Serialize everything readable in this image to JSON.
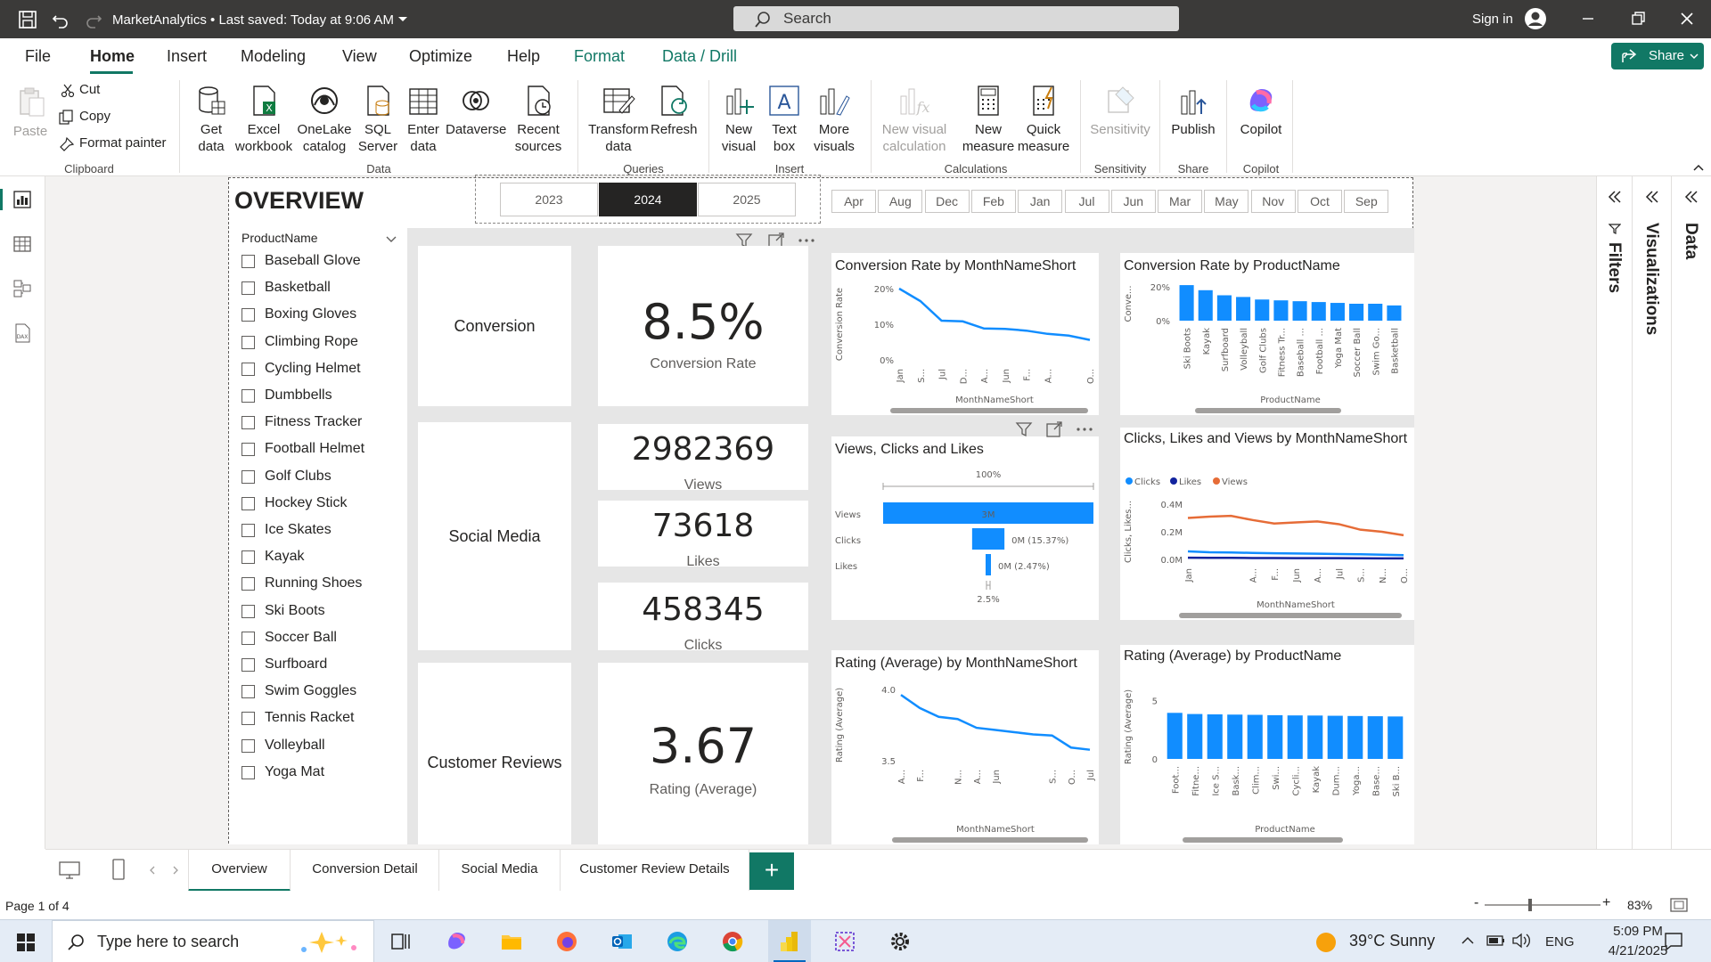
{
  "titlebar": {
    "app_title": "MarketAnalytics • Last saved: Today at 9:06 AM",
    "search_placeholder": "Search",
    "signin": "Sign in"
  },
  "menu": {
    "tabs": [
      "File",
      "Home",
      "Insert",
      "Modeling",
      "View",
      "Optimize",
      "Help",
      "Format",
      "Data / Drill"
    ],
    "active": "Home",
    "share": "Share"
  },
  "ribbon": {
    "clipboard": {
      "paste": "Paste",
      "cut": "Cut",
      "copy": "Copy",
      "format_painter": "Format painter",
      "label": "Clipboard"
    },
    "data": {
      "items": [
        "Get data",
        "Excel workbook",
        "OneLake catalog",
        "SQL Server",
        "Enter data",
        "Dataverse",
        "Recent sources"
      ],
      "label": "Data"
    },
    "queries": {
      "items": [
        "Transform data",
        "Refresh"
      ],
      "label": "Queries"
    },
    "insert": {
      "items": [
        "New visual",
        "Text box",
        "More visuals"
      ],
      "label": "Insert"
    },
    "calculations": {
      "items": [
        "New visual calculation",
        "New measure",
        "Quick measure"
      ],
      "label": "Calculations"
    },
    "sensitivity": {
      "items": [
        "Sensitivity"
      ],
      "label": "Sensitivity"
    },
    "share": {
      "items": [
        "Publish"
      ],
      "label": "Share"
    },
    "copilot": {
      "items": [
        "Copilot"
      ],
      "label": "Copilot"
    }
  },
  "panes": {
    "filters": "Filters",
    "visualizations": "Visualizations",
    "data": "Data"
  },
  "report": {
    "title": "OVERVIEW",
    "slicer": {
      "header": "ProductName",
      "items": [
        "Baseball Glove",
        "Basketball",
        "Boxing Gloves",
        "Climbing Rope",
        "Cycling Helmet",
        "Dumbbells",
        "Fitness Tracker",
        "Football Helmet",
        "Golf Clubs",
        "Hockey Stick",
        "Ice Skates",
        "Kayak",
        "Running Shoes",
        "Ski Boots",
        "Soccer Ball",
        "Surfboard",
        "Swim Goggles",
        "Tennis Racket",
        "Volleyball",
        "Yoga Mat"
      ]
    },
    "years": [
      "2023",
      "2024",
      "2025"
    ],
    "selected_year": "2024",
    "months": [
      "Apr",
      "Aug",
      "Dec",
      "Feb",
      "Jan",
      "Jul",
      "Jun",
      "Mar",
      "May",
      "Nov",
      "Oct",
      "Sep"
    ],
    "sections": {
      "conversion": "Conversion",
      "social": "Social Media",
      "reviews": "Customer Reviews"
    },
    "kpis": {
      "conversion_value": "8.5%",
      "conversion_label": "Conversion Rate",
      "views_value": "2982369",
      "views_label": "Views",
      "likes_value": "73618",
      "likes_label": "Likes",
      "clicks_value": "458345",
      "clicks_label": "Clicks",
      "rating_value": "3.67",
      "rating_label": "Rating (Average)"
    }
  },
  "chart_data": [
    {
      "type": "line",
      "title": "Conversion Rate by MonthNameShort",
      "xlabel": "MonthNameShort",
      "ylabel": "Conversion Rate",
      "categories": [
        "Jan",
        "S...",
        "Jul",
        "D...",
        "A...",
        "Jun",
        "F...",
        "A...",
        "",
        "O..."
      ],
      "yticks": [
        "20%",
        "10%",
        "0%"
      ],
      "ylim": [
        0,
        0.2
      ],
      "values": [
        0.2,
        0.165,
        0.11,
        0.108,
        0.088,
        0.087,
        0.082,
        0.073,
        0.068,
        0.056
      ]
    },
    {
      "type": "bar",
      "title": "Conversion Rate by ProductName",
      "xlabel": "ProductName",
      "ylabel": "Conve...",
      "categories": [
        "Ski Boots",
        "Kayak",
        "Surfboard",
        "Volleyball",
        "Golf Clubs",
        "Fitness Tr...",
        "Baseball ...",
        "Football ...",
        "Yoga Mat",
        "Soccer Ball",
        "Swim Go...",
        "Basketball"
      ],
      "yticks": [
        "20%",
        "0%"
      ],
      "ylim": [
        0,
        0.2
      ],
      "values": [
        0.21,
        0.18,
        0.15,
        0.14,
        0.125,
        0.12,
        0.115,
        0.11,
        0.105,
        0.1,
        0.1,
        0.09
      ]
    },
    {
      "type": "funnel",
      "title": "Views, Clicks and Likes",
      "top_label": "100%",
      "bottom_label": "2.5%",
      "categories": [
        "Views",
        "Clicks",
        "Likes"
      ],
      "values": [
        2982369,
        458345,
        73618
      ],
      "data_labels": [
        "3M",
        "0M (15.37%)",
        "0M (2.47%)"
      ]
    },
    {
      "type": "line",
      "title": "Clicks, Likes and Views by MonthNameShort",
      "xlabel": "MonthNameShort",
      "ylabel": "Clicks, Likes...",
      "categories": [
        "Jan",
        "",
        "",
        "A...",
        "F...",
        "Jun",
        "A...",
        "Jul",
        "S...",
        "N...",
        "O..."
      ],
      "yticks": [
        "0.4M",
        "0.2M",
        "0.0M"
      ],
      "ylim": [
        0,
        400000
      ],
      "series": [
        {
          "name": "Clicks",
          "color": "#118DFF",
          "values": [
            58000,
            52000,
            50000,
            47000,
            44000,
            43000,
            41000,
            39000,
            37000,
            34000,
            31000
          ]
        },
        {
          "name": "Likes",
          "color": "#12239E",
          "values": [
            12000,
            11000,
            11000,
            10000,
            9500,
            9000,
            9000,
            8500,
            8000,
            7500,
            7000
          ]
        },
        {
          "name": "Views",
          "color": "#E66C37",
          "values": [
            300000,
            310000,
            315000,
            285000,
            260000,
            268000,
            275000,
            255000,
            215000,
            200000,
            175000
          ]
        }
      ]
    },
    {
      "type": "line",
      "title": "Rating (Average) by MonthNameShort",
      "xlabel": "MonthNameShort",
      "ylabel": "Rating (Average)",
      "categories": [
        "A...",
        "F...",
        "",
        "N...",
        "A...",
        "Jun",
        "",
        "",
        "S...",
        "O...",
        "Jul"
      ],
      "yticks": [
        "4.0",
        "3.5"
      ],
      "ylim": [
        3.4,
        4.05
      ],
      "values": [
        4.0,
        3.88,
        3.8,
        3.78,
        3.7,
        3.68,
        3.66,
        3.64,
        3.63,
        3.52,
        3.5
      ]
    },
    {
      "type": "bar",
      "title": "Rating (Average) by ProductName",
      "xlabel": "ProductName",
      "ylabel": "Rating (Average)",
      "categories": [
        "Foot...",
        "Fitne...",
        "Ice S...",
        "Bask...",
        "Clim...",
        "Swi...",
        "Cycli...",
        "Kayak",
        "Dum...",
        "Yoga...",
        "Base...",
        "Ski B..."
      ],
      "yticks": [
        "5",
        "0"
      ],
      "ylim": [
        0,
        5.5
      ],
      "values": [
        3.95,
        3.85,
        3.82,
        3.8,
        3.78,
        3.75,
        3.73,
        3.72,
        3.7,
        3.68,
        3.66,
        3.64
      ]
    }
  ],
  "pages": {
    "tabs": [
      "Overview",
      "Conversion Detail",
      "Social Media",
      "Customer Review Details"
    ],
    "active": "Overview",
    "add": "+"
  },
  "status": {
    "page": "Page 1 of 4",
    "zoom": "83%",
    "zoom_minus": "-",
    "zoom_plus": "+"
  },
  "taskbar": {
    "search": "Type here to search",
    "weather": "39°C  Sunny",
    "lang": "ENG",
    "time": "5:09 PM",
    "date": "4/21/2025"
  }
}
